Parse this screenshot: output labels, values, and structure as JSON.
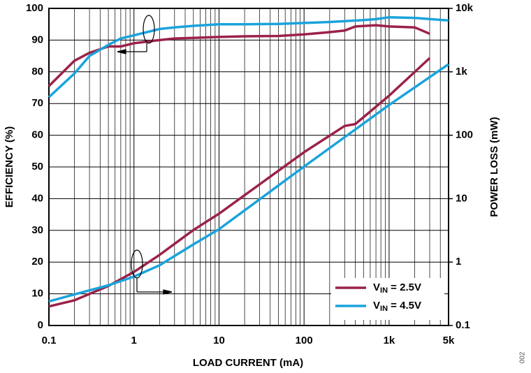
{
  "chart_data": {
    "type": "line",
    "xlabel": "LOAD CURRENT (mA)",
    "ylabel": "EFFICIENCY (%)",
    "y2label": "POWER LOSS (mW)",
    "figure_id": "002",
    "xscale": "log",
    "y2scale": "log",
    "grid": true,
    "xminor": true,
    "legend": "lower right",
    "xlim": [
      0.1,
      5000
    ],
    "ylim": [
      0,
      100
    ],
    "y2lim": [
      0.1,
      10000
    ],
    "xticks": [
      0.1,
      1,
      10,
      100,
      {
        "value": 1000,
        "label": "1k"
      },
      {
        "value": 5000,
        "label": "5k"
      }
    ],
    "yticks": [
      0,
      10,
      20,
      30,
      40,
      50,
      60,
      70,
      80,
      90,
      100
    ],
    "y2ticks": [
      0.1,
      1,
      10,
      100,
      {
        "value": 1000,
        "label": "1k"
      },
      {
        "value": 10000,
        "label": "10k"
      }
    ],
    "series": [
      {
        "name": "VIN = 2.5V",
        "color": "#9b2248",
        "x": [
          0.1,
          0.2,
          0.3,
          0.5,
          0.7,
          1,
          2,
          3,
          5,
          10,
          20,
          50,
          100,
          200,
          300,
          400,
          700,
          1000,
          2000,
          3000
        ],
        "values": [
          75.5,
          83.5,
          86,
          88,
          88,
          89,
          90,
          90.5,
          90.7,
          91,
          91.2,
          91.3,
          91.8,
          92.5,
          93,
          94.3,
          94.7,
          94.3,
          94,
          92
        ],
        "y2_x": [
          0.1,
          0.2,
          0.5,
          1,
          2,
          5,
          10,
          100,
          300,
          400,
          1000,
          3000
        ],
        "y2_values": [
          0.2,
          0.25,
          0.42,
          0.7,
          1.3,
          3.2,
          5.8,
          54,
          140,
          150,
          420,
          1650
        ]
      },
      {
        "name": "VIN = 4.5V",
        "color": "#1aa3dc",
        "x": [
          0.1,
          0.2,
          0.3,
          0.5,
          0.7,
          1,
          2,
          3,
          5,
          10,
          20,
          50,
          100,
          200,
          500,
          700,
          1000,
          2000,
          5000
        ],
        "values": [
          72,
          79.5,
          85,
          88.5,
          90.5,
          91.5,
          93.5,
          94,
          94.5,
          95,
          95,
          95.1,
          95.4,
          95.7,
          96.3,
          96.6,
          97.2,
          97,
          96.2
        ],
        "y2_x": [
          0.1,
          0.2,
          0.5,
          1,
          2,
          5,
          10,
          100,
          1000,
          5000
        ],
        "y2_values": [
          0.24,
          0.31,
          0.43,
          0.59,
          0.89,
          1.9,
          3.3,
          32,
          300,
          1320
        ]
      }
    ]
  }
}
